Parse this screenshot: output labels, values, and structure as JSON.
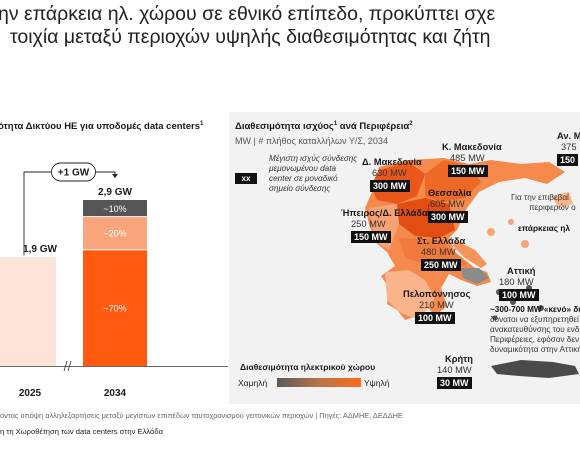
{
  "headline": {
    "line1": "ην επάρκεια ηλ. χώρου σε εθνικό επίπεδο, προκύπτει σχε",
    "line2": "τοιχία μεταξύ περιοχών υψηλής διαθεσιμότητας και ζήτη"
  },
  "left_panel": {
    "title": "ότητα Δικτύου ΗΕ για υποδομές data centers",
    "title_sup": "1"
  },
  "map_panel": {
    "title": "Διαθεσιμότητα ισχύος",
    "title_sup1": "1",
    "title_mid": " ανά Περιφέρεια",
    "title_sup2": "2",
    "subtitle": "MW | # πλήθος καταλλήλων Υ/Σ, 2034",
    "key_box": "xx",
    "key_text": "Μέγιστη ισχύς σύνδεσης μεμονωμένου data center σε μοναδικό σημείο σύνδεσης",
    "regions": [
      {
        "name": "Κ. Μακεδονία",
        "value": "485 MW",
        "max": "150 MW"
      },
      {
        "name": "Αν. Μακεδ",
        "value": "375",
        "max": "150"
      },
      {
        "name": "Δ. Μακεδονία",
        "value": "630 MW",
        "max": "300 MW"
      },
      {
        "name": "Θεσσαλία",
        "value": "605 MW",
        "max": "300 MW"
      },
      {
        "name": "Ήπειρος/Δ. Ελλάδα",
        "value": "250 MW",
        "max": "150 MW"
      },
      {
        "name": "Στ. Ελλάδα",
        "value": "480 MW",
        "max": "250 MW"
      },
      {
        "name": "Αττική",
        "value": "180 MW",
        "max": "100 MW"
      },
      {
        "name": "Πελοπόννησος",
        "value": "210 MW",
        "max": "100 MW"
      },
      {
        "name": "Κρήτη",
        "value": "140 MW",
        "max": "30 MW"
      }
    ],
    "note1": {
      "l1": "Για την επιβεβαί",
      "l2": "περιφερών ο"
    },
    "note2": "επάρκειας ηλ",
    "note3": {
      "l1": "~300-700 MW «κενό» δυ",
      "l2": "δύνατοι να εξυπηρετηθεί",
      "l3": "ανακατευθύνσης του ενδι",
      "l4": "Περιφέρειες, εφόσον δεν ε",
      "l5": "δυναμικότητα στην Αττική"
    },
    "gradient_title": "Διαθεσιμότητα ηλεκτρικού χώρου",
    "gradient_low": "Χαμηλή",
    "gradient_high": "Υψηλή"
  },
  "chart_data": {
    "type": "bar",
    "stacked": true,
    "categories": [
      "2025",
      "2034"
    ],
    "bars": [
      {
        "category": "2025",
        "total": 1.9,
        "total_label": "1,9 GW",
        "segments": []
      },
      {
        "category": "2034",
        "total": 2.9,
        "total_label": "2,9 GW",
        "segments": [
          {
            "share": 0.7,
            "label": "~70%",
            "color": "#ff5a0f"
          },
          {
            "share": 0.2,
            "label": "~20%",
            "color": "#f9a47a"
          },
          {
            "share": 0.1,
            "label": "~10%",
            "color": "#555555"
          }
        ]
      }
    ],
    "delta_label": "+1 GW",
    "bar_colors": {
      "2025": "#fde3d8"
    },
    "ylim": [
      0,
      2.9
    ],
    "axis_break": true
  },
  "footnotes": {
    "line1": "οντας υπόψη αλληλεξαρτήσεις μεταξύ μεγίστων επιπέδων ταυτοχρονισμού γειτονικών περιοχών | Πηγές: ΑΔΜΗΕ, ΔΕΔΔΗΕ",
    "line2": "η τη Χωροθέτηση των data centers στην Ελλάδα"
  }
}
